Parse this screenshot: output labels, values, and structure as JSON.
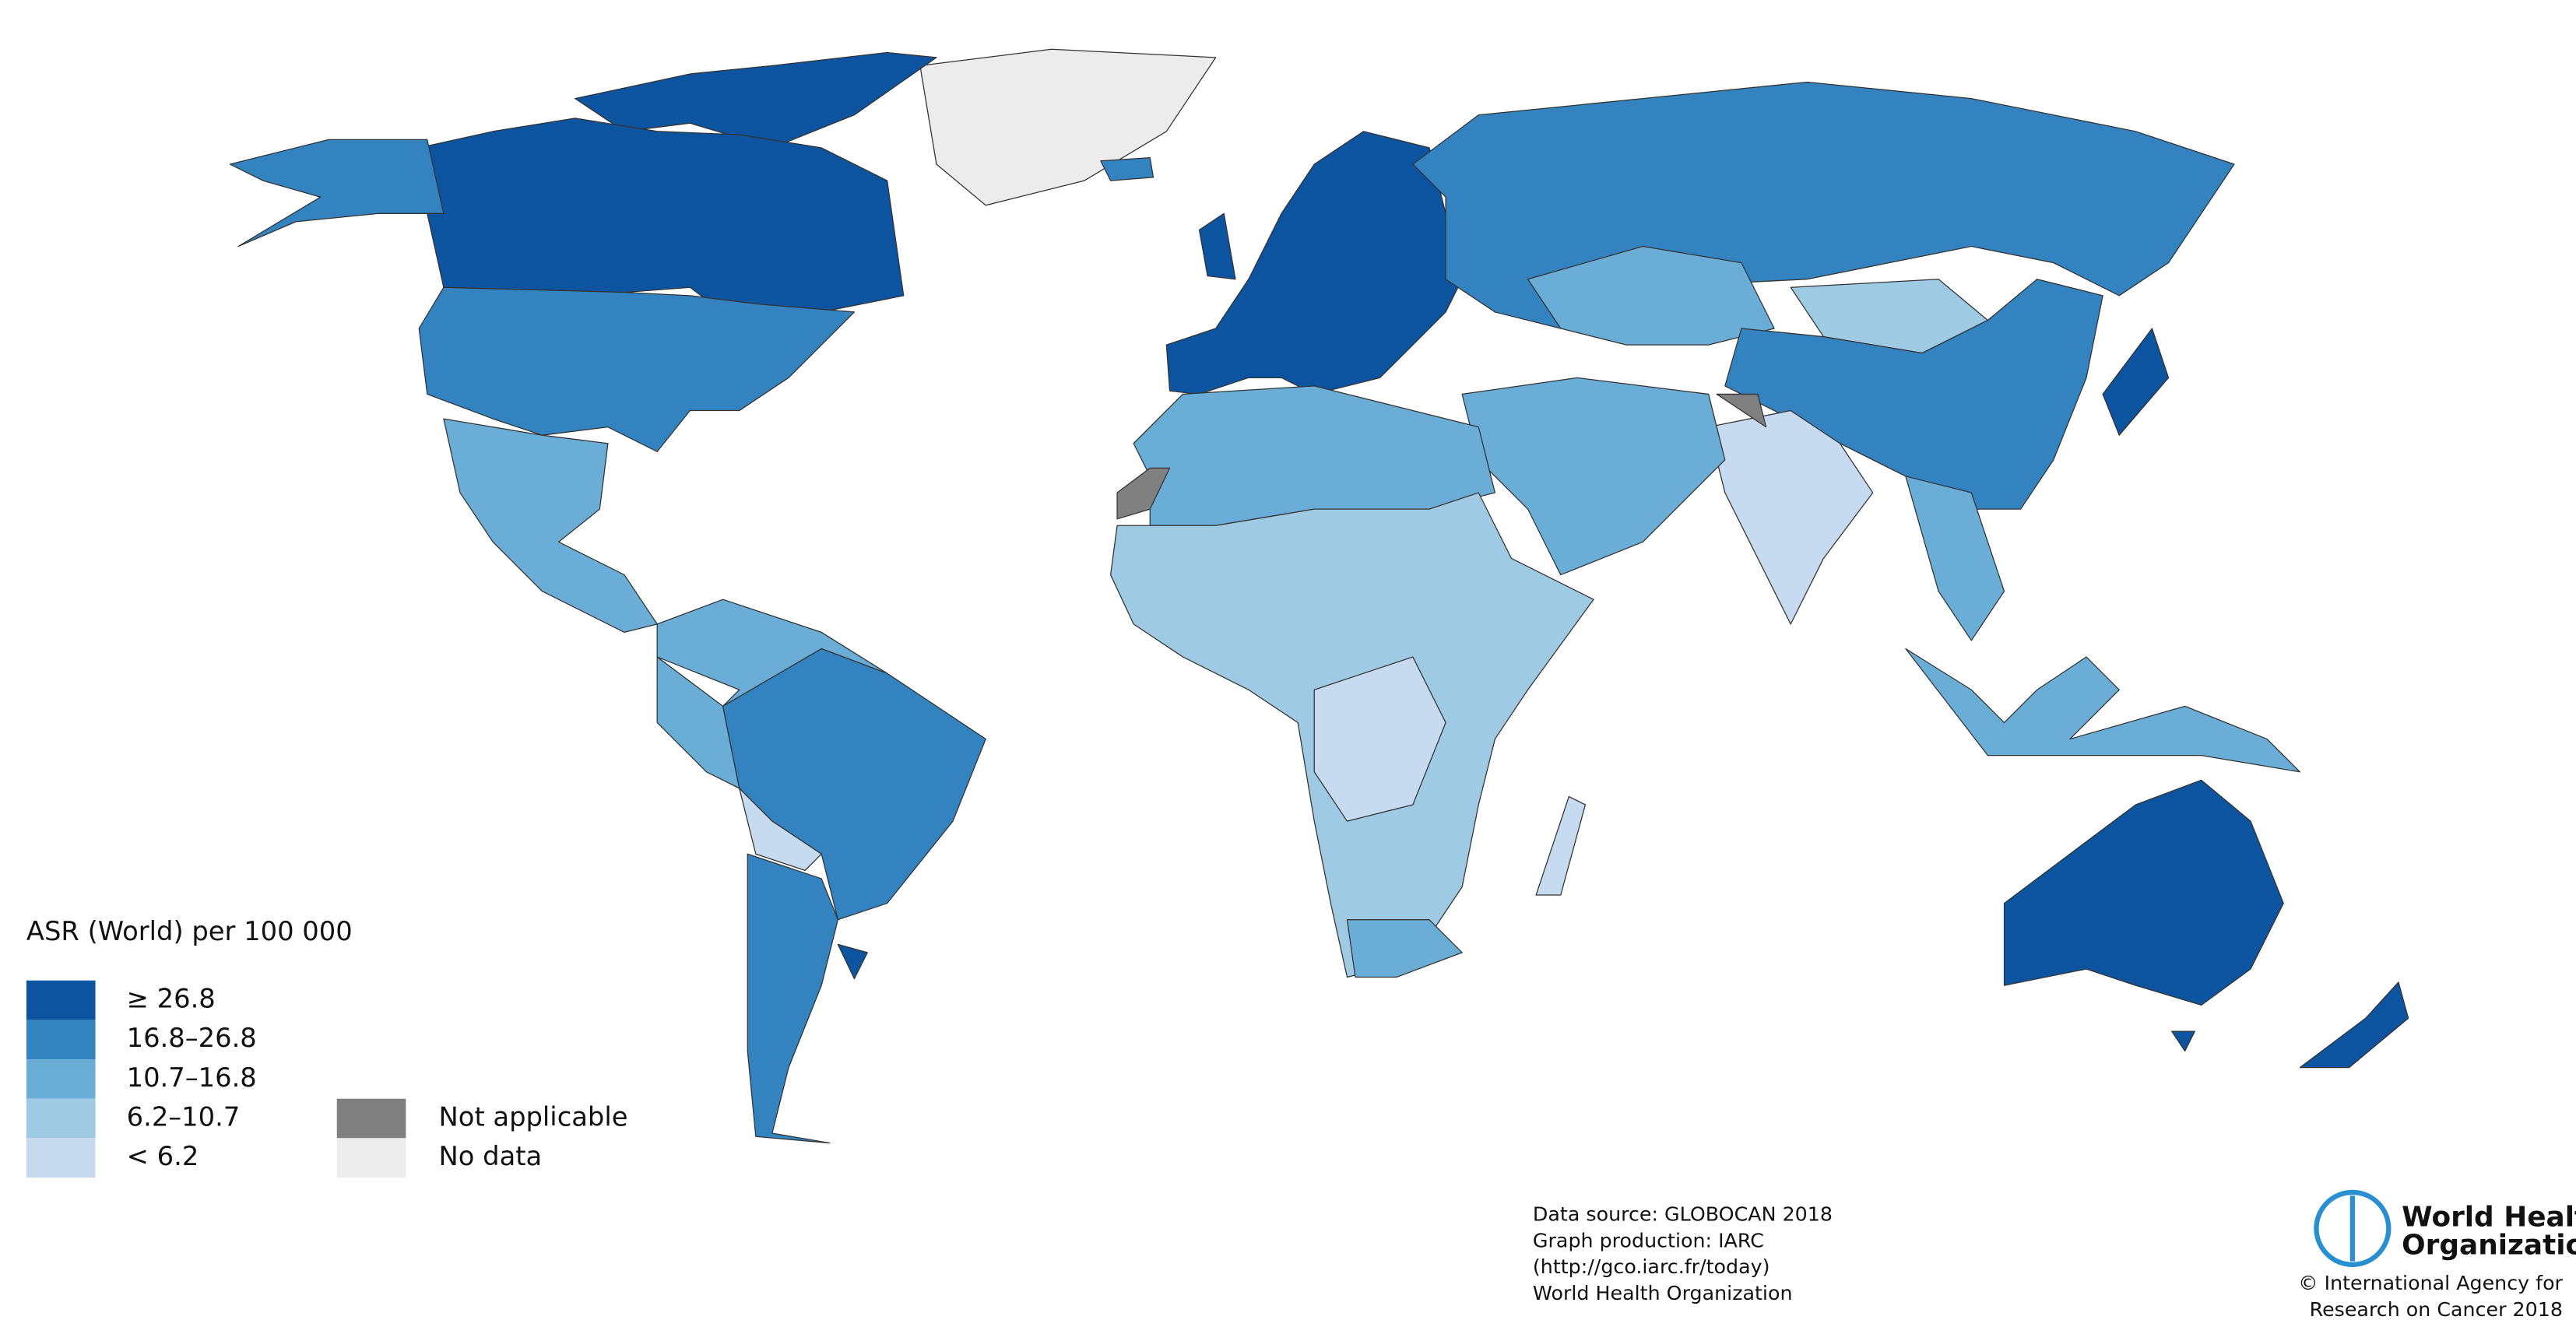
{
  "legend": {
    "title": "ASR (World) per 100 000",
    "items": [
      {
        "label": "≥ 26.8",
        "color": "#0c54a0"
      },
      {
        "label": "16.8–26.8",
        "color": "#3383c0"
      },
      {
        "label": "10.7–16.8",
        "color": "#6aaed8"
      },
      {
        "label": "6.2–10.7",
        "color": "#9fcae3"
      },
      {
        "label": "< 6.2",
        "color": "#c6dbf0"
      },
      {
        "label": "Not applicable",
        "color": "#808080"
      },
      {
        "label": "No data",
        "color": "#ececec"
      }
    ]
  },
  "footer": {
    "lines": [
      "Data source: GLOBOCAN 2018",
      "Graph production: IARC",
      "(http://gco.iarc.fr/today)",
      "World Health Organization"
    ]
  },
  "logo": {
    "lines": [
      "World Health",
      "Organization"
    ]
  },
  "copyright": {
    "lines": [
      "© International Agency for",
      "Research on Cancer 2018"
    ]
  }
}
